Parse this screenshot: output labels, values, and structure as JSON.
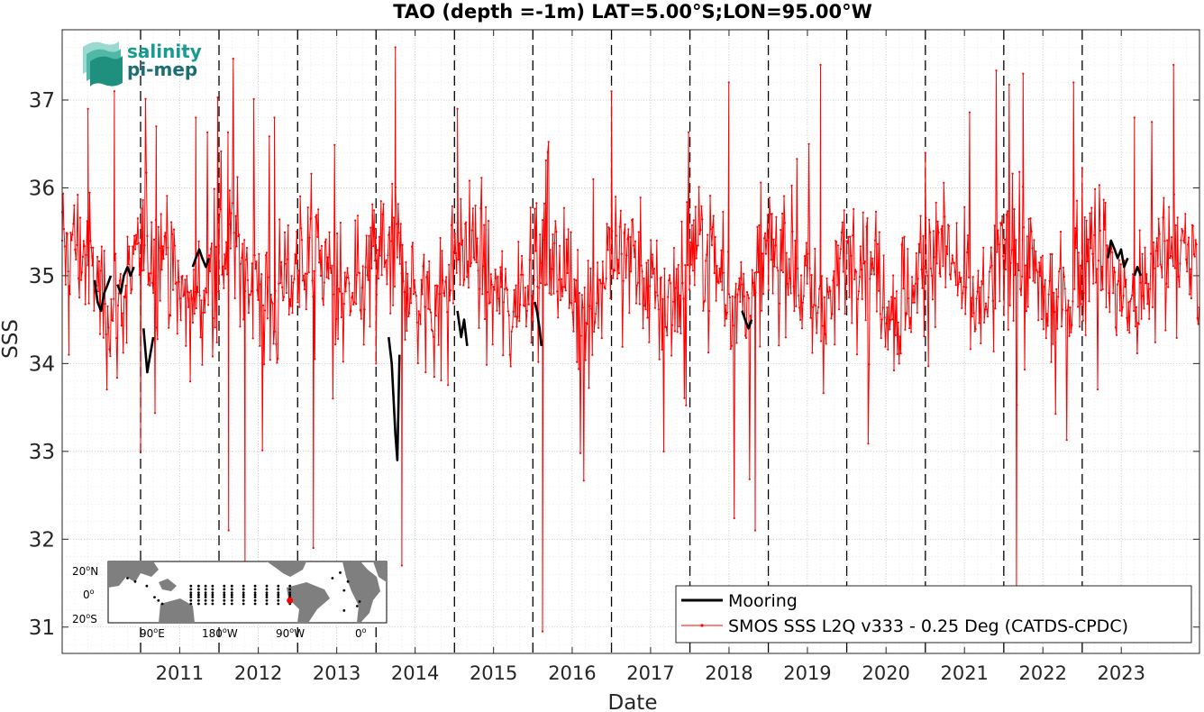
{
  "chart_data": {
    "type": "line",
    "title": "TAO (depth =-1m) LAT=5.00°S;LON=95.00°W",
    "xlabel": "Date",
    "ylabel": "SSS",
    "xlim": [
      "2010-01-01",
      "2024-06-30"
    ],
    "ylim": [
      30.7,
      37.8
    ],
    "x_tick_labels": [
      "2011",
      "2012",
      "2013",
      "2014",
      "2015",
      "2016",
      "2017",
      "2018",
      "2019",
      "2020",
      "2021",
      "2022",
      "2023"
    ],
    "y_tick_labels": [
      "31",
      "32",
      "33",
      "34",
      "35",
      "36",
      "37"
    ],
    "grid": true,
    "year_boundary_lines": [
      "2011-01-01",
      "2012-01-01",
      "2013-01-01",
      "2014-01-01",
      "2015-01-01",
      "2016-01-01",
      "2017-01-01",
      "2018-01-01",
      "2019-01-01",
      "2020-01-01",
      "2021-01-01",
      "2022-01-01",
      "2023-01-01"
    ],
    "legend_position": "bottom-right",
    "series": [
      {
        "name": "Mooring",
        "color": "#000000",
        "segments": [
          {
            "x": [
              "2010-06-01",
              "2010-06-15",
              "2010-07-01",
              "2010-07-15",
              "2010-08-01",
              "2010-08-15"
            ],
            "y": [
              34.95,
              34.7,
              34.6,
              34.8,
              34.9,
              35.0
            ]
          },
          {
            "x": [
              "2010-09-15",
              "2010-10-01",
              "2010-10-15",
              "2010-11-01",
              "2010-11-15",
              "2010-12-01"
            ],
            "y": [
              34.9,
              34.8,
              35.0,
              35.1,
              35.0,
              35.1
            ]
          },
          {
            "x": [
              "2011-01-15",
              "2011-02-01",
              "2011-02-15",
              "2011-03-01"
            ],
            "y": [
              34.4,
              33.9,
              34.1,
              34.3
            ]
          },
          {
            "x": [
              "2011-09-01",
              "2011-09-15",
              "2011-10-01",
              "2011-10-15",
              "2011-11-01",
              "2011-11-15"
            ],
            "y": [
              35.1,
              35.2,
              35.3,
              35.2,
              35.1,
              35.2
            ]
          },
          {
            "x": [
              "2014-03-01",
              "2014-03-15",
              "2014-04-01",
              "2014-04-10",
              "2014-04-20"
            ],
            "y": [
              34.3,
              34.0,
              33.2,
              32.9,
              34.1
            ]
          },
          {
            "x": [
              "2015-01-15",
              "2015-02-01",
              "2015-02-15",
              "2015-03-01"
            ],
            "y": [
              34.6,
              34.3,
              34.5,
              34.2
            ]
          },
          {
            "x": [
              "2016-01-10",
              "2016-01-20",
              "2016-02-01",
              "2016-02-10"
            ],
            "y": [
              34.7,
              34.6,
              34.4,
              34.2
            ]
          },
          {
            "x": [
              "2018-09-01",
              "2018-09-15",
              "2018-10-01",
              "2018-10-15"
            ],
            "y": [
              34.6,
              34.5,
              34.4,
              34.5
            ]
          },
          {
            "x": [
              "2023-05-01",
              "2023-05-15",
              "2023-06-01",
              "2023-06-15",
              "2023-07-01",
              "2023-07-15",
              "2023-08-01"
            ],
            "y": [
              35.2,
              35.4,
              35.3,
              35.2,
              35.3,
              35.1,
              35.2
            ]
          },
          {
            "x": [
              "2023-09-01",
              "2023-09-15",
              "2023-10-01"
            ],
            "y": [
              35.0,
              35.1,
              35.0
            ]
          }
        ]
      },
      {
        "name": "SMOS SSS L2Q v333 - 0.25 Deg (CATDS-CPDC)",
        "color": "#ff0000",
        "marker": "dot",
        "mean": 35.0,
        "min": 30.95,
        "max": 37.6,
        "notable_points": {
          "x": [
            "2010-01-01",
            "2010-02-01",
            "2010-05-01",
            "2010-09-01",
            "2011-01-01",
            "2011-03-15",
            "2011-09-15",
            "2012-02-15",
            "2012-05-01",
            "2012-09-15",
            "2013-03-15",
            "2014-01-01",
            "2014-04-01",
            "2014-05-01",
            "2015-01-15",
            "2016-02-15",
            "2017-01-01",
            "2018-07-01",
            "2018-11-01",
            "2019-09-01",
            "2021-01-01",
            "2022-03-01",
            "2022-04-01",
            "2023-09-01",
            "2024-03-01"
          ],
          "y": [
            35.4,
            34.1,
            36.9,
            37.1,
            33.0,
            36.7,
            36.8,
            32.1,
            31.6,
            36.8,
            31.9,
            34.0,
            37.6,
            31.7,
            36.9,
            30.95,
            37.1,
            37.2,
            32.1,
            37.4,
            36.4,
            31.4,
            37.3,
            36.8,
            37.4
          ]
        }
      }
    ]
  },
  "logo": {
    "line1": "salinity",
    "line2": "pi-mep"
  },
  "inset_map": {
    "lat_labels": [
      "20",
      "N",
      "0",
      "20",
      "S"
    ],
    "lon_labels": [
      "90",
      "E",
      "180",
      "W",
      "90",
      "W",
      "0"
    ],
    "degree_mark": "o",
    "marker_lat": -5,
    "marker_lon": -95
  },
  "colors": {
    "mooring": "#000000",
    "smos": "#ff0000",
    "land": "#7f7f7f",
    "logo_text": "#169b8f"
  }
}
